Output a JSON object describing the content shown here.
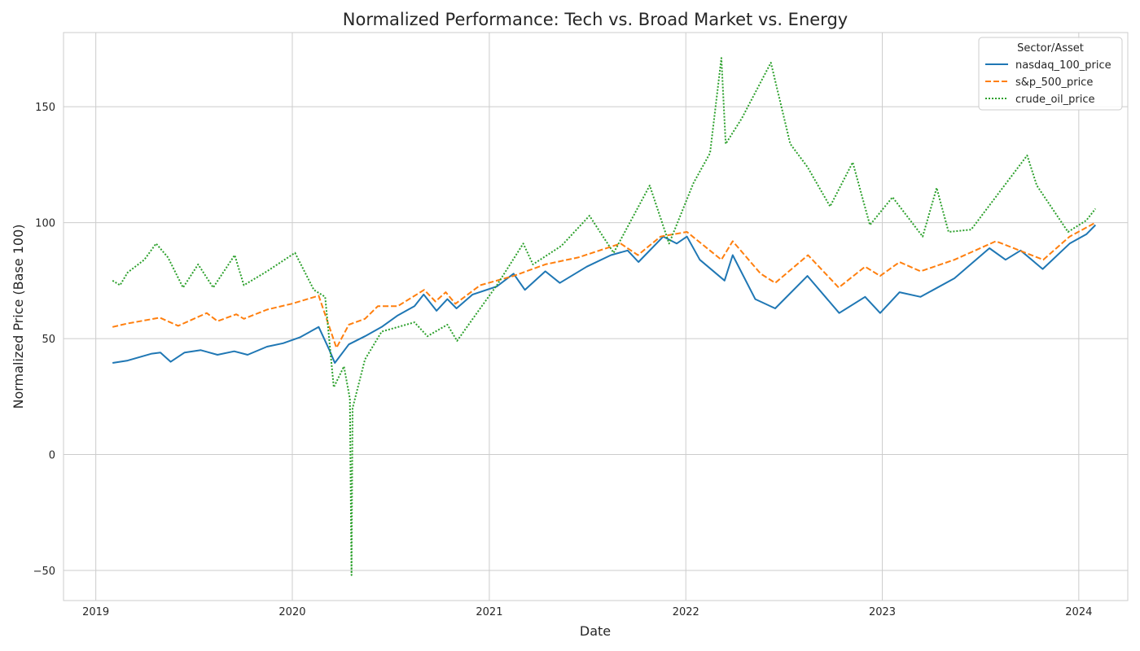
{
  "chart_data": {
    "type": "line",
    "title": "Normalized Performance: Tech vs. Broad Market vs. Energy",
    "xlabel": "Date",
    "ylabel": "Normalized Price (Base 100)",
    "xlim": [
      "2018-11-02",
      "2024-04-01"
    ],
    "ylim": [
      -63,
      182
    ],
    "x_ticks": [
      "2019-01-01",
      "2020-01-01",
      "2021-01-01",
      "2022-01-01",
      "2023-01-01",
      "2024-01-01"
    ],
    "x_tick_labels": [
      "2019",
      "2020",
      "2021",
      "2022",
      "2023",
      "2024"
    ],
    "y_ticks": [
      -50,
      0,
      50,
      100,
      150
    ],
    "grid": true,
    "legend": {
      "title": "Sector/Asset",
      "placement": "top-right"
    },
    "series": [
      {
        "name": "nasdaq_100_price",
        "color": "#1f77b4",
        "dash": "solid",
        "points": [
          [
            "2019-02-01",
            39.5
          ],
          [
            "2019-03-01",
            40.5
          ],
          [
            "2019-04-15",
            43.5
          ],
          [
            "2019-05-01",
            44.0
          ],
          [
            "2019-05-20",
            40.0
          ],
          [
            "2019-06-15",
            44.0
          ],
          [
            "2019-07-15",
            45.0
          ],
          [
            "2019-08-15",
            43.0
          ],
          [
            "2019-09-15",
            44.5
          ],
          [
            "2019-10-10",
            43.0
          ],
          [
            "2019-11-15",
            46.5
          ],
          [
            "2019-12-15",
            48.0
          ],
          [
            "2020-01-15",
            50.5
          ],
          [
            "2020-02-19",
            55.0
          ],
          [
            "2020-03-10",
            45.0
          ],
          [
            "2020-03-20",
            39.5
          ],
          [
            "2020-04-15",
            47.5
          ],
          [
            "2020-05-15",
            51.0
          ],
          [
            "2020-06-15",
            55.0
          ],
          [
            "2020-07-15",
            60.0
          ],
          [
            "2020-08-15",
            64.0
          ],
          [
            "2020-09-01",
            69.0
          ],
          [
            "2020-09-25",
            62.0
          ],
          [
            "2020-10-15",
            67.0
          ],
          [
            "2020-11-01",
            63.0
          ],
          [
            "2020-12-01",
            69.0
          ],
          [
            "2021-01-15",
            72.5
          ],
          [
            "2021-02-15",
            78.0
          ],
          [
            "2021-03-08",
            71.0
          ],
          [
            "2021-04-15",
            79.0
          ],
          [
            "2021-05-12",
            74.0
          ],
          [
            "2021-07-01",
            81.0
          ],
          [
            "2021-08-15",
            86.0
          ],
          [
            "2021-09-15",
            88.0
          ],
          [
            "2021-10-05",
            83.0
          ],
          [
            "2021-11-20",
            94.0
          ],
          [
            "2021-12-15",
            91.0
          ],
          [
            "2022-01-03",
            94.0
          ],
          [
            "2022-01-27",
            84.0
          ],
          [
            "2022-03-14",
            75.0
          ],
          [
            "2022-03-29",
            86.0
          ],
          [
            "2022-05-10",
            67.0
          ],
          [
            "2022-06-16",
            63.0
          ],
          [
            "2022-08-15",
            77.0
          ],
          [
            "2022-10-13",
            61.0
          ],
          [
            "2022-11-30",
            68.0
          ],
          [
            "2022-12-28",
            61.0
          ],
          [
            "2023-02-02",
            70.0
          ],
          [
            "2023-03-13",
            68.0
          ],
          [
            "2023-05-15",
            76.0
          ],
          [
            "2023-07-19",
            89.0
          ],
          [
            "2023-08-18",
            84.0
          ],
          [
            "2023-09-15",
            88.0
          ],
          [
            "2023-10-26",
            80.0
          ],
          [
            "2023-12-15",
            91.0
          ],
          [
            "2024-01-15",
            95.0
          ],
          [
            "2024-02-01",
            99.0
          ]
        ]
      },
      {
        "name": "s&p_500_price",
        "color": "#ff7f0e",
        "dash": "dashed",
        "points": [
          [
            "2019-02-01",
            55.0
          ],
          [
            "2019-03-01",
            56.5
          ],
          [
            "2019-04-30",
            59.0
          ],
          [
            "2019-06-03",
            55.5
          ],
          [
            "2019-07-26",
            61.0
          ],
          [
            "2019-08-15",
            57.5
          ],
          [
            "2019-09-19",
            60.5
          ],
          [
            "2019-10-03",
            58.5
          ],
          [
            "2019-11-15",
            62.5
          ],
          [
            "2019-12-31",
            65.0
          ],
          [
            "2020-02-19",
            68.5
          ],
          [
            "2020-03-23",
            46.0
          ],
          [
            "2020-04-15",
            56.0
          ],
          [
            "2020-05-15",
            58.5
          ],
          [
            "2020-06-08",
            64.0
          ],
          [
            "2020-07-15",
            64.0
          ],
          [
            "2020-09-02",
            71.0
          ],
          [
            "2020-09-23",
            66.0
          ],
          [
            "2020-10-12",
            70.0
          ],
          [
            "2020-10-30",
            65.0
          ],
          [
            "2020-12-15",
            73.0
          ],
          [
            "2021-02-15",
            77.0
          ],
          [
            "2021-04-15",
            82.0
          ],
          [
            "2021-06-15",
            85.0
          ],
          [
            "2021-09-02",
            91.0
          ],
          [
            "2021-10-04",
            86.0
          ],
          [
            "2021-11-15",
            94.0
          ],
          [
            "2022-01-03",
            96.0
          ],
          [
            "2022-03-08",
            84.0
          ],
          [
            "2022-03-29",
            92.0
          ],
          [
            "2022-05-20",
            78.0
          ],
          [
            "2022-06-16",
            74.0
          ],
          [
            "2022-08-16",
            86.0
          ],
          [
            "2022-10-12",
            72.0
          ],
          [
            "2022-11-30",
            81.0
          ],
          [
            "2022-12-28",
            77.0
          ],
          [
            "2023-02-02",
            83.0
          ],
          [
            "2023-03-13",
            79.0
          ],
          [
            "2023-05-15",
            84.0
          ],
          [
            "2023-07-31",
            92.0
          ],
          [
            "2023-10-27",
            84.0
          ],
          [
            "2023-12-15",
            94.0
          ],
          [
            "2024-02-01",
            100.0
          ]
        ]
      },
      {
        "name": "crude_oil_price",
        "color": "#2ca02c",
        "dash": "dotted",
        "points": [
          [
            "2019-02-01",
            75.0
          ],
          [
            "2019-02-15",
            73.0
          ],
          [
            "2019-03-01",
            78.5
          ],
          [
            "2019-04-01",
            84.0
          ],
          [
            "2019-04-23",
            91.0
          ],
          [
            "2019-05-15",
            85.0
          ],
          [
            "2019-06-12",
            72.0
          ],
          [
            "2019-07-10",
            82.0
          ],
          [
            "2019-08-07",
            72.0
          ],
          [
            "2019-09-16",
            86.0
          ],
          [
            "2019-10-03",
            73.0
          ],
          [
            "2019-11-15",
            79.0
          ],
          [
            "2020-01-06",
            87.0
          ],
          [
            "2020-02-10",
            71.0
          ],
          [
            "2020-03-02",
            68.0
          ],
          [
            "2020-03-18",
            29.0
          ],
          [
            "2020-04-06",
            38.0
          ],
          [
            "2020-04-17",
            24.0
          ],
          [
            "2020-04-20",
            -52.0
          ],
          [
            "2020-04-22",
            20.0
          ],
          [
            "2020-05-15",
            41.0
          ],
          [
            "2020-06-15",
            53.0
          ],
          [
            "2020-08-15",
            57.0
          ],
          [
            "2020-09-08",
            51.0
          ],
          [
            "2020-10-15",
            56.0
          ],
          [
            "2020-11-02",
            49.0
          ],
          [
            "2020-12-15",
            63.0
          ],
          [
            "2021-01-15",
            73.0
          ],
          [
            "2021-03-05",
            91.0
          ],
          [
            "2021-03-23",
            82.0
          ],
          [
            "2021-05-15",
            90.0
          ],
          [
            "2021-07-06",
            103.0
          ],
          [
            "2021-08-20",
            87.0
          ],
          [
            "2021-10-26",
            116.0
          ],
          [
            "2021-12-01",
            91.0
          ],
          [
            "2022-01-15",
            117.0
          ],
          [
            "2022-02-15",
            130.0
          ],
          [
            "2022-03-08",
            171.0
          ],
          [
            "2022-03-16",
            134.0
          ],
          [
            "2022-04-15",
            145.0
          ],
          [
            "2022-06-08",
            169.0
          ],
          [
            "2022-07-14",
            134.0
          ],
          [
            "2022-08-15",
            124.0
          ],
          [
            "2022-09-26",
            107.0
          ],
          [
            "2022-11-07",
            126.0
          ],
          [
            "2022-12-09",
            99.0
          ],
          [
            "2023-01-20",
            111.0
          ],
          [
            "2023-03-17",
            94.0
          ],
          [
            "2023-04-12",
            115.0
          ],
          [
            "2023-05-04",
            96.0
          ],
          [
            "2023-06-15",
            97.0
          ],
          [
            "2023-09-27",
            129.0
          ],
          [
            "2023-10-15",
            116.0
          ],
          [
            "2023-12-12",
            96.0
          ],
          [
            "2024-01-15",
            101.0
          ],
          [
            "2024-02-01",
            106.0
          ]
        ]
      }
    ]
  }
}
